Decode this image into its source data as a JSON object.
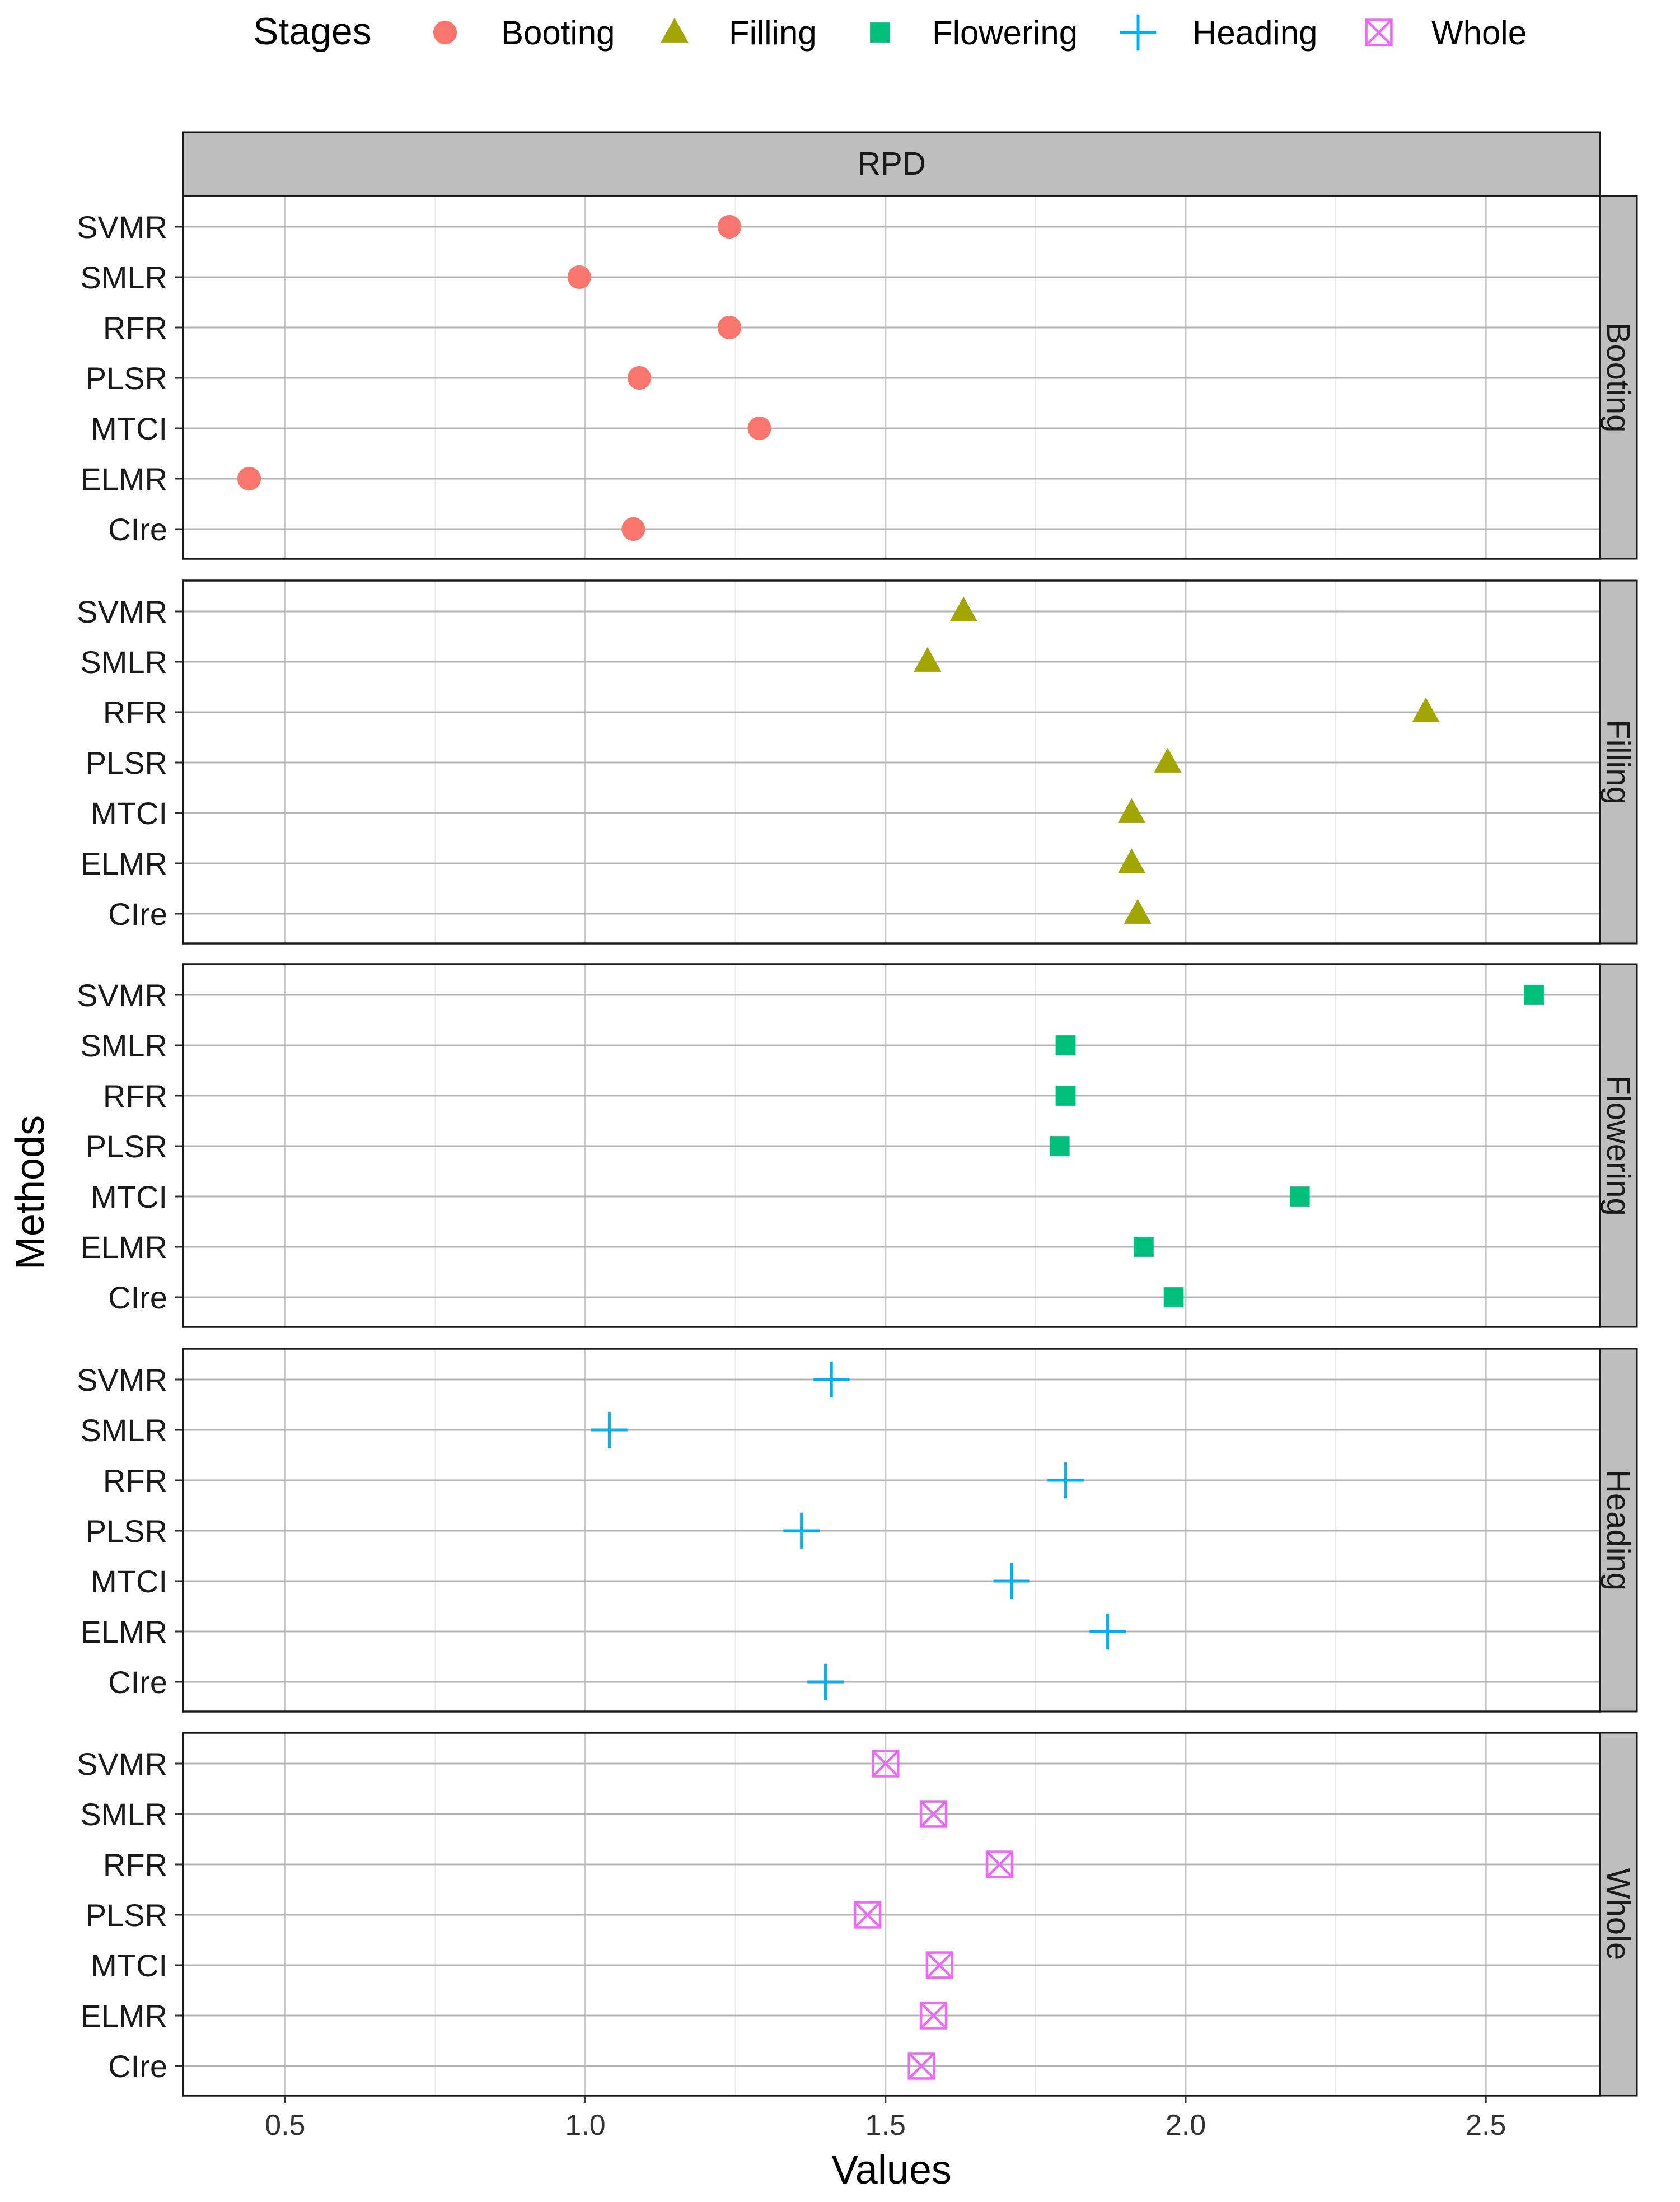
{
  "legend": {
    "title": "Stages",
    "items": [
      {
        "label": "Booting",
        "shape": "circle",
        "color": "#F8766D"
      },
      {
        "label": "Filling",
        "shape": "triangle",
        "color": "#A3A500"
      },
      {
        "label": "Flowering",
        "shape": "square",
        "color": "#00BF7D"
      },
      {
        "label": "Heading",
        "shape": "plus",
        "color": "#00B0F6"
      },
      {
        "label": "Whole",
        "shape": "boxx",
        "color": "#E76BF3"
      }
    ]
  },
  "chart_data": {
    "type": "scatter",
    "metric_strip": "RPD",
    "xlabel": "Values",
    "ylabel": "Methods",
    "xlim": [
      0.33,
      2.69
    ],
    "x_ticks": [
      0.5,
      1.0,
      1.5,
      2.0,
      2.5
    ],
    "x_tick_labels": [
      "0.5",
      "1.0",
      "1.5",
      "2.0",
      "2.5"
    ],
    "grid": true,
    "legend_position": "top",
    "methods": [
      "SVMR",
      "SMLR",
      "RFR",
      "PLSR",
      "MTCI",
      "ELMR",
      "CIre"
    ],
    "panels": [
      {
        "stage": "Booting",
        "values": [
          1.24,
          0.99,
          1.24,
          1.09,
          1.29,
          0.44,
          1.08
        ]
      },
      {
        "stage": "Filling",
        "values": [
          1.63,
          1.57,
          2.4,
          1.97,
          1.91,
          1.91,
          1.92
        ]
      },
      {
        "stage": "Flowering",
        "values": [
          2.58,
          1.8,
          1.8,
          1.79,
          2.19,
          1.93,
          1.98
        ]
      },
      {
        "stage": "Heading",
        "values": [
          1.41,
          1.04,
          1.8,
          1.36,
          1.71,
          1.87,
          1.4
        ]
      },
      {
        "stage": "Whole",
        "values": [
          1.5,
          1.58,
          1.69,
          1.47,
          1.59,
          1.58,
          1.56
        ]
      }
    ]
  }
}
